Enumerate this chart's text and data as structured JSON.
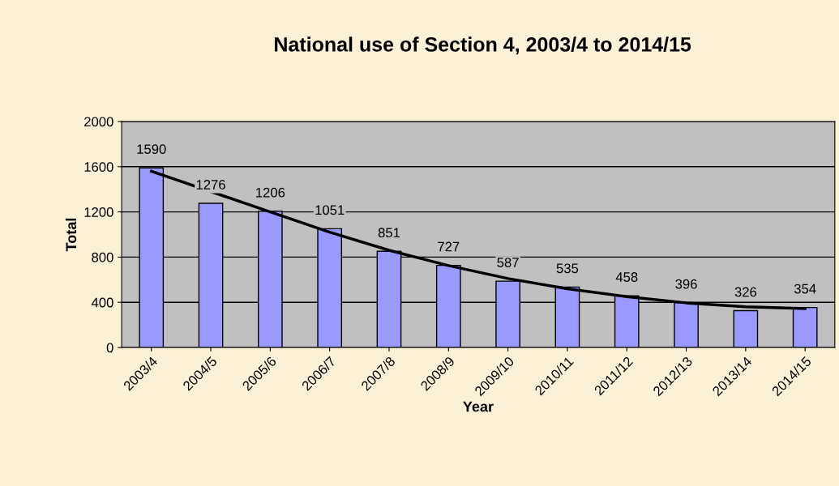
{
  "chart_data": {
    "type": "bar",
    "title": "National use of Section 4, 2003/4 to 2014/15",
    "xlabel": "Year",
    "ylabel": "Total",
    "categories": [
      "2003/4",
      "2004/5",
      "2005/6",
      "2006/7",
      "2007/8",
      "2008/9",
      "2009/10",
      "2010/11",
      "2011/12",
      "2012/13",
      "2013/14",
      "2014/15"
    ],
    "series": [
      {
        "color": "#9999ff",
        "values": [
          1590,
          1276,
          1206,
          1051,
          851,
          727,
          587,
          535,
          458,
          396,
          326,
          354
        ],
        "value_labels": [
          "1590",
          "1276",
          "1206",
          "1051",
          "851",
          "727",
          "587",
          "535",
          "458",
          "396",
          "326",
          "354"
        ]
      },
      {
        "type": "line",
        "color": "#000000",
        "values": [
          1560,
          1380,
          1200,
          1020,
          860,
          725,
          610,
          520,
          450,
          395,
          360,
          345
        ]
      }
    ],
    "ylim": [
      0,
      2000
    ],
    "yticks": [
      0,
      400,
      800,
      1200,
      1600,
      2000
    ],
    "grid": "y"
  }
}
